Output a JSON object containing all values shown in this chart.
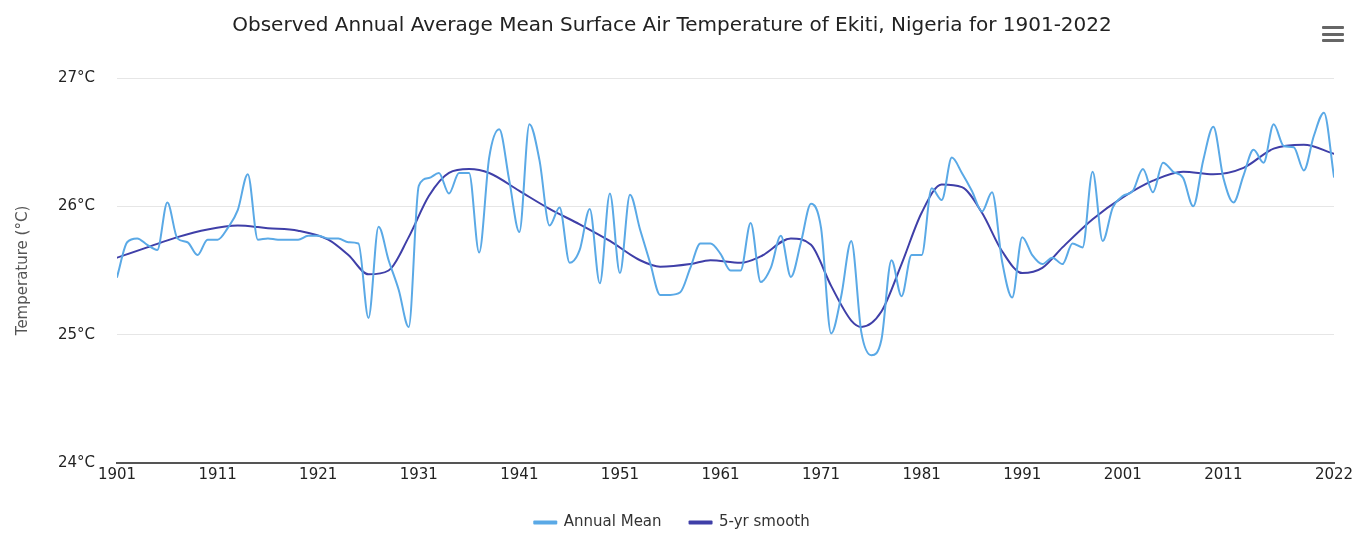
{
  "chart_data": {
    "type": "line",
    "title": "Observed Annual Average Mean Surface Air Temperature of Ekiti, Nigeria for 1901-2022",
    "ylabel": "Temperature (°C)",
    "x": [
      1901,
      1902,
      1903,
      1904,
      1905,
      1906,
      1907,
      1908,
      1909,
      1910,
      1911,
      1912,
      1913,
      1914,
      1915,
      1916,
      1917,
      1918,
      1919,
      1920,
      1921,
      1922,
      1923,
      1924,
      1925,
      1926,
      1927,
      1928,
      1929,
      1930,
      1931,
      1932,
      1933,
      1934,
      1935,
      1936,
      1937,
      1938,
      1939,
      1940,
      1941,
      1942,
      1943,
      1944,
      1945,
      1946,
      1947,
      1948,
      1949,
      1950,
      1951,
      1952,
      1953,
      1954,
      1955,
      1956,
      1957,
      1958,
      1959,
      1960,
      1961,
      1962,
      1963,
      1964,
      1965,
      1966,
      1967,
      1968,
      1969,
      1970,
      1971,
      1972,
      1973,
      1974,
      1975,
      1976,
      1977,
      1978,
      1979,
      1980,
      1981,
      1982,
      1983,
      1984,
      1985,
      1986,
      1987,
      1988,
      1989,
      1990,
      1991,
      1992,
      1993,
      1994,
      1995,
      1996,
      1997,
      1998,
      1999,
      2000,
      2001,
      2002,
      2003,
      2004,
      2005,
      2006,
      2007,
      2008,
      2009,
      2010,
      2011,
      2012,
      2013,
      2014,
      2015,
      2016,
      2017,
      2018,
      2019,
      2020,
      2021,
      2022
    ],
    "series": [
      {
        "name": "Annual Mean",
        "color": "#5aa9e6",
        "values": [
          25.45,
          25.72,
          25.75,
          25.7,
          25.66,
          26.03,
          25.75,
          25.72,
          25.62,
          25.74,
          25.74,
          25.83,
          25.97,
          26.25,
          25.74,
          25.75,
          25.74,
          25.74,
          25.74,
          25.77,
          25.77,
          25.75,
          25.75,
          25.72,
          25.71,
          25.13,
          25.84,
          25.58,
          25.35,
          25.06,
          26.16,
          26.22,
          26.26,
          26.1,
          26.26,
          26.26,
          25.64,
          26.38,
          26.6,
          26.2,
          25.8,
          26.64,
          26.36,
          25.85,
          25.99,
          25.56,
          25.66,
          25.98,
          25.4,
          26.1,
          25.48,
          26.09,
          25.82,
          25.56,
          25.31,
          25.31,
          25.33,
          25.52,
          25.71,
          25.71,
          25.63,
          25.5,
          25.5,
          25.87,
          25.41,
          25.52,
          25.77,
          25.45,
          25.72,
          26.02,
          25.83,
          25.01,
          25.3,
          25.73,
          25.02,
          24.84,
          24.96,
          25.58,
          25.3,
          25.62,
          25.62,
          26.14,
          26.05,
          26.38,
          26.26,
          26.12,
          25.96,
          26.11,
          25.57,
          25.29,
          25.76,
          25.62,
          25.55,
          25.6,
          25.55,
          25.71,
          25.68,
          26.27,
          25.73,
          25.99,
          26.08,
          26.12,
          26.29,
          26.11,
          26.34,
          26.27,
          26.22,
          26.0,
          26.36,
          26.62,
          26.22,
          26.03,
          26.24,
          26.44,
          26.34,
          26.64,
          26.47,
          26.46,
          26.28,
          26.55,
          26.73,
          26.23
        ]
      },
      {
        "name": "5-yr smooth",
        "color": "#3f3fa8",
        "x": [
          1901,
          1904,
          1907,
          1910,
          1913,
          1916,
          1919,
          1922,
          1924,
          1926,
          1928,
          1930,
          1932,
          1934,
          1936,
          1938,
          1941,
          1944,
          1947,
          1950,
          1953,
          1955,
          1958,
          1960,
          1963,
          1965,
          1968,
          1970,
          1972,
          1974,
          1975,
          1977,
          1979,
          1981,
          1983,
          1985,
          1987,
          1989,
          1991,
          1993,
          1995,
          1998,
          2001,
          2004,
          2007,
          2010,
          2013,
          2016,
          2019,
          2022
        ],
        "values": [
          25.6,
          25.68,
          25.76,
          25.82,
          25.85,
          25.83,
          25.81,
          25.74,
          25.62,
          25.47,
          25.5,
          25.76,
          26.08,
          26.26,
          26.29,
          26.26,
          26.12,
          25.98,
          25.86,
          25.73,
          25.58,
          25.53,
          25.55,
          25.58,
          25.56,
          25.61,
          25.75,
          25.7,
          25.38,
          25.11,
          25.06,
          25.18,
          25.55,
          25.95,
          26.17,
          26.15,
          25.95,
          25.65,
          25.48,
          25.52,
          25.68,
          25.9,
          26.07,
          26.2,
          26.27,
          26.25,
          26.3,
          26.45,
          26.48,
          26.41
        ]
      }
    ],
    "xlim": [
      1901,
      2022
    ],
    "xticks": [
      1901,
      1911,
      1921,
      1931,
      1941,
      1951,
      1961,
      1971,
      1981,
      1991,
      2001,
      2011,
      2022
    ],
    "ylim": [
      24,
      27
    ],
    "yticks": [
      {
        "value": 24,
        "label": "24°C"
      },
      {
        "value": 25,
        "label": "25°C"
      },
      {
        "value": 26,
        "label": "26°C"
      },
      {
        "value": 27,
        "label": "27°C"
      }
    ],
    "grid": "y",
    "legend": "bottom",
    "marker": "none",
    "line_style": "solid"
  }
}
